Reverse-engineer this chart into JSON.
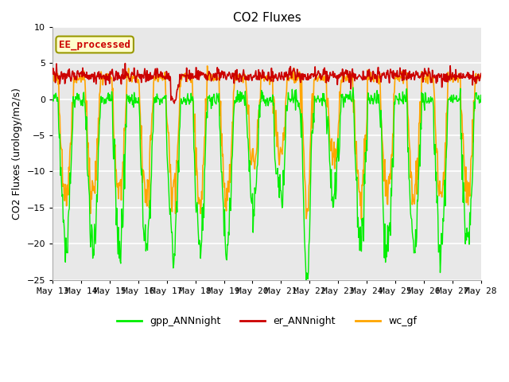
{
  "title": "CO2 Fluxes",
  "ylabel": "CO2 Fluxes (urology/m2/s)",
  "ylim": [
    -25,
    10
  ],
  "yticks": [
    -25,
    -20,
    -15,
    -10,
    -5,
    0,
    5,
    10
  ],
  "n_days": 16,
  "pts_per_day": 48,
  "background_color": "#ffffff",
  "plot_bg_color": "#e8e8e8",
  "grid_color": "#ffffff",
  "line_colors": {
    "gpp": "#00ee00",
    "er": "#cc0000",
    "wc": "#ffa500"
  },
  "line_widths": {
    "gpp": 1.0,
    "er": 1.2,
    "wc": 1.2
  },
  "legend_labels": [
    "gpp_ANNnight",
    "er_ANNnight",
    "wc_gf"
  ],
  "annotation_text": "EE_processed",
  "annotation_color": "#cc0000",
  "annotation_bg": "#ffffcc",
  "annotation_border": "#999900",
  "title_fontsize": 11,
  "label_fontsize": 9,
  "tick_fontsize": 8,
  "x_tick_labels": [
    "May 13",
    "May 14",
    "May 15",
    "May 16",
    "May 17",
    "May 18",
    "May 19",
    "May 20",
    "May 21",
    "May 22",
    "May 23",
    "May 24",
    "May 25",
    "May 26",
    "May 27",
    "May 28"
  ],
  "x_tick_positions": [
    0,
    1,
    2,
    3,
    4,
    5,
    6,
    7,
    8,
    9,
    10,
    11,
    12,
    13,
    14,
    15
  ]
}
